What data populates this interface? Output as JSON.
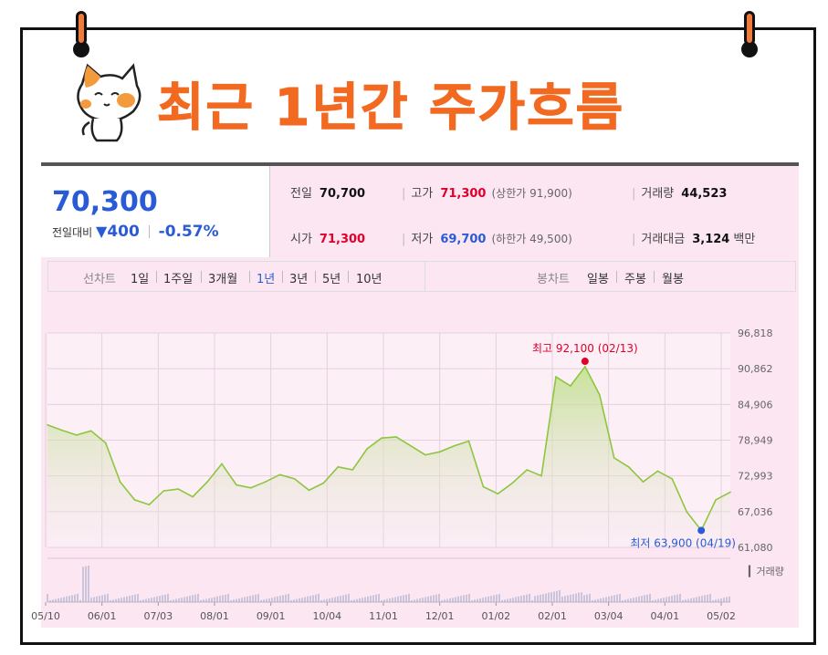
{
  "header": {
    "title": "최근 1년간 주가흐름"
  },
  "summary": {
    "price": "70,300",
    "change_label": "전일대비",
    "change_icon": "triangle-down-icon",
    "change_value": "400",
    "change_pct": "-0.57%",
    "prev_close_label": "전일",
    "prev_close": "70,700",
    "high_label": "고가",
    "high": "71,300",
    "upper_limit": "(상한가 91,900)",
    "volume_label": "거래량",
    "volume": "44,523",
    "open_label": "시가",
    "open": "71,300",
    "low_label": "저가",
    "low": "69,700",
    "lower_limit": "(하한가 49,500)",
    "amount_label": "거래대금",
    "amount": "3,124",
    "amount_unit": "백만"
  },
  "tabs": {
    "line_label": "선차트",
    "line_tabs": [
      "1일",
      "1주일",
      "3개월",
      "1년",
      "3년",
      "5년",
      "10년"
    ],
    "active": "1년",
    "candle_label": "봉차트",
    "candle_tabs": [
      "일봉",
      "주봉",
      "월봉"
    ]
  },
  "colors": {
    "accent": "#f26a21",
    "up": "#e0002a",
    "down": "#2a5bd7",
    "line": "#8dc63f"
  },
  "chart_data": {
    "type": "area",
    "ylim": [
      61080,
      96818
    ],
    "yticks": [
      "96,818",
      "90,862",
      "84,906",
      "78,949",
      "72,993",
      "67,036",
      "61,080"
    ],
    "x_labels": [
      "05/10",
      "06/01",
      "07/03",
      "08/01",
      "09/01",
      "10/04",
      "11/01",
      "12/01",
      "01/02",
      "02/01",
      "03/04",
      "04/01",
      "05/02"
    ],
    "x": [
      "05/10",
      "05/17",
      "05/24",
      "06/01",
      "06/08",
      "06/15",
      "06/22",
      "07/03",
      "07/10",
      "07/17",
      "07/24",
      "08/01",
      "08/08",
      "08/15",
      "08/22",
      "09/01",
      "09/08",
      "09/15",
      "09/22",
      "10/04",
      "10/11",
      "10/18",
      "10/25",
      "11/01",
      "11/08",
      "11/15",
      "11/22",
      "12/01",
      "12/08",
      "12/15",
      "12/22",
      "01/02",
      "01/09",
      "01/16",
      "01/23",
      "02/01",
      "02/08",
      "02/13",
      "02/20",
      "03/04",
      "03/11",
      "03/18",
      "03/25",
      "04/01",
      "04/08",
      "04/19",
      "04/26",
      "05/02"
    ],
    "y": [
      81500,
      80600,
      79800,
      80500,
      78500,
      72000,
      69000,
      68200,
      70500,
      70800,
      69500,
      72000,
      75000,
      71500,
      71000,
      72000,
      73200,
      72500,
      70600,
      71800,
      74500,
      74000,
      77500,
      79300,
      79500,
      78000,
      76500,
      77000,
      78000,
      78800,
      71200,
      70000,
      71800,
      74000,
      73000,
      89500,
      88000,
      91200,
      86500,
      76000,
      74500,
      72000,
      73800,
      72500,
      67000,
      63900,
      69000,
      70300
    ],
    "volume_label": "거래량",
    "annotations": [
      {
        "label": "최고 92,100 (02/13)",
        "x": "02/13",
        "y": 92100,
        "color": "#e0002a"
      },
      {
        "label": "최저 63,900 (04/19)",
        "x": "04/19",
        "y": 63900,
        "color": "#2a5bd7"
      }
    ],
    "grid": true
  }
}
